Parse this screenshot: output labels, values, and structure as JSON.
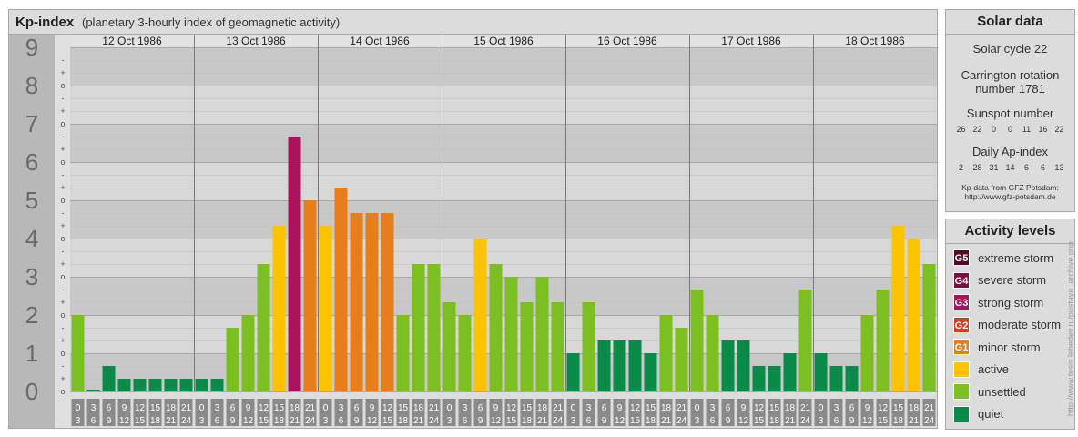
{
  "chart_data": {
    "type": "bar",
    "title": "Kp-index",
    "subtitle": "(planetary 3-hourly index of geomagnetic activity)",
    "y_ticks": [
      "0",
      "1",
      "2",
      "3",
      "4",
      "5",
      "6",
      "7",
      "8",
      "9"
    ],
    "y_minor_labels": [
      "-",
      "o",
      "+"
    ],
    "ylim": [
      0,
      9
    ],
    "days": [
      "12 Oct 1986",
      "13 Oct 1986",
      "14 Oct 1986",
      "15 Oct 1986",
      "16 Oct 1986",
      "17 Oct 1986",
      "18 Oct 1986"
    ],
    "hours_start": [
      "0",
      "3",
      "6",
      "9",
      "12",
      "15",
      "18",
      "21"
    ],
    "hours_end": [
      "3",
      "6",
      "9",
      "12",
      "15",
      "18",
      "21",
      "24"
    ],
    "values": [
      2.0,
      0.0,
      0.667,
      0.333,
      0.333,
      0.333,
      0.333,
      0.333,
      0.333,
      0.333,
      1.667,
      2.0,
      3.333,
      4.333,
      6.667,
      5.0,
      4.333,
      5.333,
      4.667,
      4.667,
      4.667,
      2.0,
      3.333,
      3.333,
      2.333,
      2.0,
      4.0,
      3.333,
      3.0,
      2.333,
      3.0,
      2.333,
      1.0,
      2.333,
      1.333,
      1.333,
      1.333,
      1.0,
      2.0,
      1.667,
      2.667,
      2.0,
      1.333,
      1.333,
      0.667,
      0.667,
      1.0,
      2.667,
      1.0,
      0.667,
      0.667,
      2.0,
      2.667,
      4.333,
      4.0,
      3.333
    ],
    "grid": true
  },
  "solar_data": {
    "header": "Solar data",
    "cycle": "Solar cycle 22",
    "carrington_line1": "Carrington rotation",
    "carrington_line2": "number 1781",
    "sunspot_label": "Sunspot number",
    "sunspot_values": [
      "26",
      "22",
      "0",
      "0",
      "11",
      "16",
      "22"
    ],
    "ap_label": "Daily Ap-index",
    "ap_values": [
      "2",
      "28",
      "31",
      "14",
      "6",
      "6",
      "13"
    ],
    "source_line1": "Kp-data from GFZ Potsdam:",
    "source_line2": "http://www.gfz-potsdam.de"
  },
  "activity_levels": {
    "header": "Activity levels",
    "items": [
      {
        "badge": "G5",
        "label": "extreme storm",
        "color": "#4f0a25"
      },
      {
        "badge": "G4",
        "label": "severe storm",
        "color": "#7d1042"
      },
      {
        "badge": "G3",
        "label": "strong storm",
        "color": "#aa1258"
      },
      {
        "badge": "G2",
        "label": "moderate storm",
        "color": "#d63d1a"
      },
      {
        "badge": "G1",
        "label": "minor storm",
        "color": "#e67e1b"
      },
      {
        "badge": "",
        "label": "active",
        "color": "#fbc300"
      },
      {
        "badge": "",
        "label": "unsettled",
        "color": "#7cbf21"
      },
      {
        "badge": "",
        "label": "quiet",
        "color": "#0a8a49"
      }
    ]
  },
  "colors": {
    "quiet": "#0a8a49",
    "unsettled": "#7cbf21",
    "active": "#fbc300",
    "g1": "#e67e1b",
    "g2": "#d63d1a",
    "g3": "#aa1258",
    "g4": "#7d1042",
    "g5": "#4f0a25"
  },
  "credit": "http://www.tesis.lebedev.ru/pustaya_archive.php"
}
